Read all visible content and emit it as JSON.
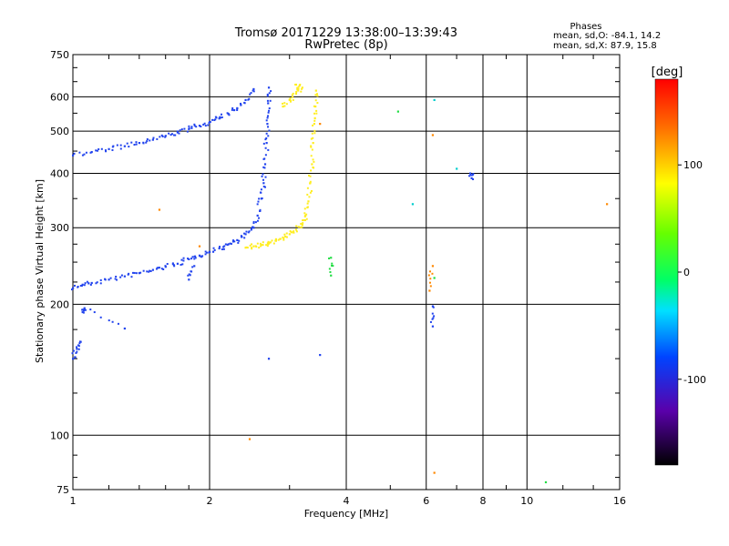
{
  "chart_data": {
    "type": "scatter",
    "title": "Tromsø 20171229 13:38:00–13:39:43",
    "subtitle": "RwPretec (8p)",
    "xlabel": "Frequency [MHz]",
    "ylabel": "Stationary phase Virtual Height [km]",
    "x_scale": "log",
    "y_scale": "log",
    "xlim": [
      1,
      16
    ],
    "ylim": [
      75,
      750
    ],
    "x_ticks": [
      1,
      2,
      4,
      6,
      8,
      10,
      16
    ],
    "y_ticks": [
      75,
      100,
      200,
      300,
      400,
      500,
      600,
      750
    ],
    "grid": true,
    "stats": {
      "heading": "Phases",
      "line_o": "mean, sd,O: -84.1, 14.2",
      "line_x": "mean, sd,X:  87.9, 15.8"
    },
    "colorbar": {
      "label": "[deg]",
      "ticks": [
        100,
        0,
        -100
      ],
      "range": [
        -180,
        180
      ]
    },
    "series": [
      {
        "color": "#2244ee",
        "points": [
          [
            1.0,
            218
          ],
          [
            1.05,
            222
          ],
          [
            1.1,
            224
          ],
          [
            1.2,
            228
          ],
          [
            1.3,
            232
          ],
          [
            1.4,
            236
          ],
          [
            1.5,
            240
          ],
          [
            1.6,
            244
          ],
          [
            1.7,
            248
          ],
          [
            1.8,
            254
          ],
          [
            1.9,
            259
          ],
          [
            2.0,
            264
          ],
          [
            2.1,
            269
          ],
          [
            2.2,
            275
          ],
          [
            2.3,
            281
          ],
          [
            2.4,
            290
          ],
          [
            2.5,
            300
          ],
          [
            2.55,
            320
          ],
          [
            2.6,
            350
          ],
          [
            2.63,
            380
          ],
          [
            2.65,
            420
          ],
          [
            2.67,
            470
          ],
          [
            2.68,
            520
          ],
          [
            2.69,
            580
          ],
          [
            2.7,
            630
          ]
        ]
      },
      {
        "color": "#2244ee",
        "points": [
          [
            1.0,
            440
          ],
          [
            1.1,
            448
          ],
          [
            1.2,
            455
          ],
          [
            1.3,
            462
          ],
          [
            1.4,
            470
          ],
          [
            1.5,
            478
          ],
          [
            1.6,
            488
          ],
          [
            1.7,
            497
          ],
          [
            1.8,
            506
          ],
          [
            1.9,
            515
          ],
          [
            2.0,
            525
          ],
          [
            2.1,
            535
          ],
          [
            2.2,
            548
          ],
          [
            2.3,
            565
          ],
          [
            2.4,
            590
          ],
          [
            2.5,
            625
          ]
        ]
      },
      {
        "color": "#2244ee",
        "points": [
          [
            1.0,
            150
          ],
          [
            1.02,
            158
          ],
          [
            1.04,
            164
          ],
          [
            1.05,
            192
          ],
          [
            1.06,
            196
          ],
          [
            1.3,
            176
          ],
          [
            1.8,
            228
          ],
          [
            1.85,
            245
          ],
          [
            2.7,
            150
          ],
          [
            3.5,
            153
          ],
          [
            6.2,
            178
          ],
          [
            6.2,
            198
          ],
          [
            7.5,
            400
          ],
          [
            7.55,
            390
          ]
        ]
      },
      {
        "color": "#ffee22",
        "points": [
          [
            2.4,
            270
          ],
          [
            2.5,
            272
          ],
          [
            2.6,
            274
          ],
          [
            2.7,
            276
          ],
          [
            2.8,
            280
          ],
          [
            2.9,
            285
          ],
          [
            3.0,
            290
          ],
          [
            3.1,
            297
          ],
          [
            3.2,
            305
          ],
          [
            3.25,
            320
          ],
          [
            3.3,
            345
          ],
          [
            3.33,
            380
          ],
          [
            3.36,
            420
          ],
          [
            3.38,
            470
          ],
          [
            3.4,
            520
          ],
          [
            3.42,
            570
          ],
          [
            3.43,
            620
          ],
          [
            2.9,
            570
          ],
          [
            3.0,
            590
          ],
          [
            3.1,
            610
          ],
          [
            3.2,
            630
          ],
          [
            3.1,
            640
          ]
        ]
      },
      {
        "color": "#ff8800",
        "points": [
          [
            3.5,
            520
          ],
          [
            1.9,
            272
          ],
          [
            1.55,
            330
          ],
          [
            2.45,
            98
          ],
          [
            6.1,
            215
          ],
          [
            6.2,
            245
          ],
          [
            6.25,
            82
          ],
          [
            6.2,
            490
          ],
          [
            15.0,
            340
          ]
        ]
      },
      {
        "color": "#22dd44",
        "points": [
          [
            3.7,
            256
          ],
          [
            3.7,
            233
          ],
          [
            5.2,
            555
          ],
          [
            6.25,
            230
          ],
          [
            11.0,
            78
          ]
        ]
      },
      {
        "color": "#00cccc",
        "points": [
          [
            5.6,
            340
          ],
          [
            6.25,
            590
          ],
          [
            7.0,
            410
          ]
        ]
      }
    ]
  }
}
